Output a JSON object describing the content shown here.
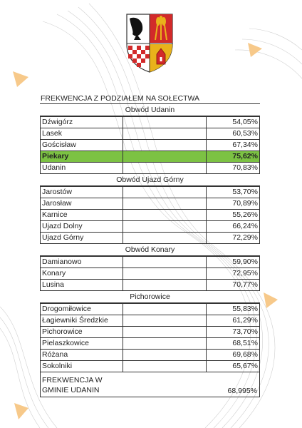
{
  "doc": {
    "title": "FREKWENCJA Z PODZIAŁEM NA SOŁECTWA",
    "groups": [
      {
        "name": "Obwód Udanin",
        "rows": [
          {
            "name": "Dźwigórz",
            "value": "54,05%"
          },
          {
            "name": "Lasek",
            "value": "60,53%"
          },
          {
            "name": "Gościsław",
            "value": "67,34%"
          },
          {
            "name": "Piekary",
            "value": "75,62%",
            "highlight": true
          },
          {
            "name": "Udanin",
            "value": "70,83%"
          }
        ]
      },
      {
        "name": "Obwód Ujazd Górny",
        "rows": [
          {
            "name": "Jarostów",
            "value": "53,70%"
          },
          {
            "name": "Jarosław",
            "value": "70,89%"
          },
          {
            "name": "Karnice",
            "value": "55,26%"
          },
          {
            "name": "Ujazd Dolny",
            "value": "66,24%"
          },
          {
            "name": "Ujazd Górny",
            "value": "72,29%"
          }
        ]
      },
      {
        "name": "Obwód Konary",
        "rows": [
          {
            "name": "Damianowo",
            "value": "59,90%"
          },
          {
            "name": "Konary",
            "value": "72,95%"
          },
          {
            "name": "Lusina",
            "value": "70,77%"
          }
        ]
      },
      {
        "name": "Pichorowice",
        "rows": [
          {
            "name": "Drogomiłowice",
            "value": "55,83%"
          },
          {
            "name": "Łagiewniki Średzkie",
            "value": "61,29%"
          },
          {
            "name": "Pichorowice",
            "value": "73,70%"
          },
          {
            "name": "Pielaszkowice",
            "value": "68,51%"
          },
          {
            "name": "Różana",
            "value": "69,68%"
          },
          {
            "name": "Sokolniki",
            "value": "65,67%"
          }
        ]
      }
    ],
    "total": {
      "label_line1": "FREKWENCJA W",
      "label_line2": "GMINIE UDANIN",
      "value": "68,995%"
    },
    "highlight_color": "#7cc243",
    "accent_color": "#f7c98a"
  }
}
